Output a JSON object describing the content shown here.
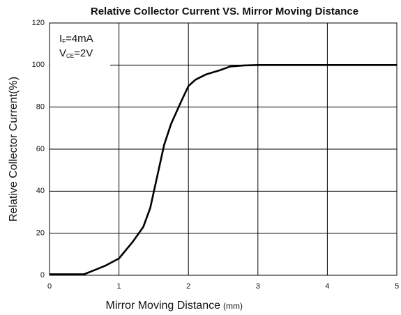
{
  "chart_data": {
    "type": "line",
    "title": "Relative Collector Current VS. Mirror Moving Distance",
    "x_label": "Mirror Moving Distance",
    "x_unit": "(mm)",
    "y_label": "Relative Collector Current(%)",
    "annotations": [
      {
        "main": "I",
        "sub": "F",
        "rest": "=4mA"
      },
      {
        "main": "V",
        "sub": "CE",
        "rest": "=2V"
      }
    ],
    "x": [
      0,
      0.5,
      0.8,
      1,
      1.2,
      1.35,
      1.45,
      1.55,
      1.65,
      1.75,
      1.9,
      2,
      2.1,
      2.25,
      2.45,
      2.6,
      2.8,
      3,
      4,
      5
    ],
    "series": [
      {
        "name": "Relative Collector Current",
        "color": "#000000",
        "values": [
          0.5,
          0.5,
          4.5,
          8,
          16,
          23,
          32,
          47,
          62,
          72,
          83,
          90,
          93,
          95.5,
          97.5,
          99.3,
          99.8,
          100,
          100,
          100
        ]
      }
    ],
    "xlim": [
      0,
      5
    ],
    "xticks": [
      0,
      1,
      2,
      3,
      4,
      5
    ],
    "ylim": [
      0,
      120
    ],
    "yticks": [
      0,
      20,
      40,
      60,
      80,
      100,
      120
    ],
    "grid": true
  }
}
